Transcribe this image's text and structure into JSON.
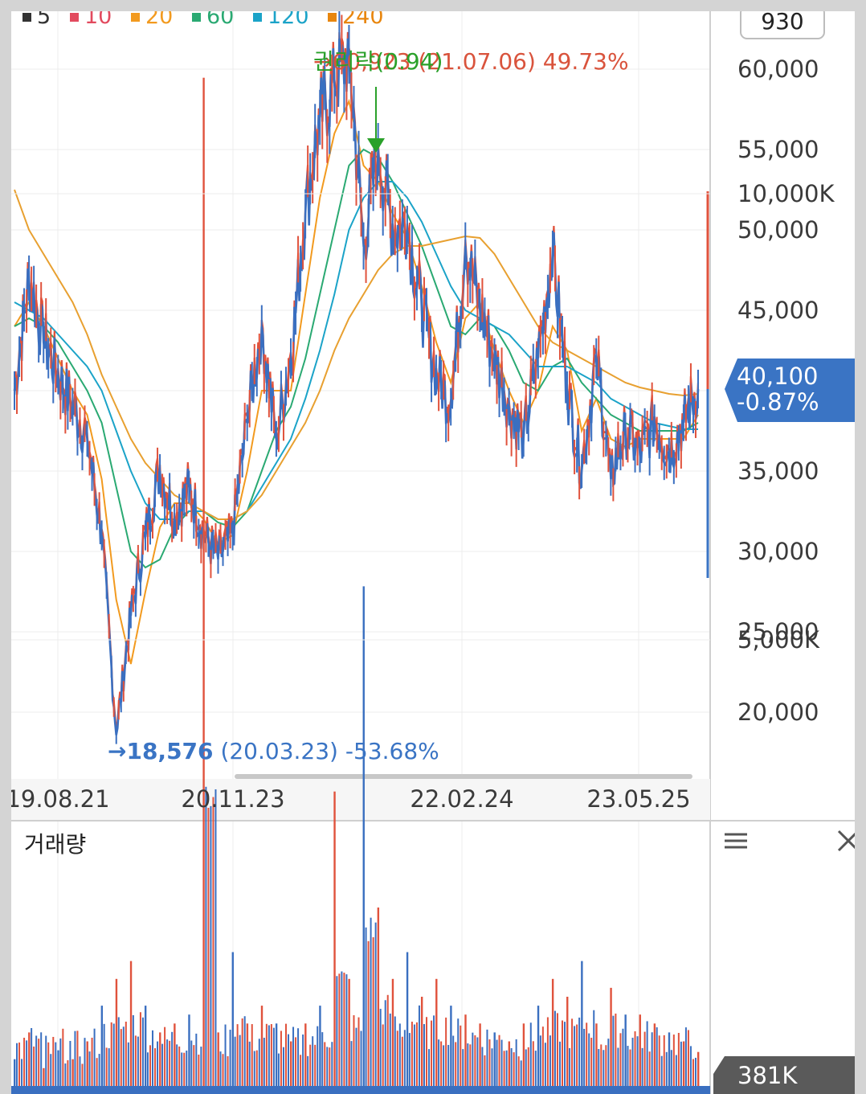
{
  "legend": [
    {
      "label": "5",
      "color": "#333333"
    },
    {
      "label": "10",
      "color": "#e24a5e"
    },
    {
      "label": "20",
      "color": "#f29a1f"
    },
    {
      "label": "60",
      "color": "#2aa972"
    },
    {
      "label": "120",
      "color": "#1ba3c8"
    },
    {
      "label": "240",
      "color": "#e8860e"
    }
  ],
  "top_box": "930",
  "current_price": {
    "value": "40,100",
    "change": "-0.87%",
    "color": "#3a74c4"
  },
  "high_annotation": {
    "value": "→60,923",
    "date": "(21.07.06)",
    "pct": "49.73%"
  },
  "low_annotation": {
    "arrow": "→",
    "value": "18,576",
    "date": "(20.03.23)",
    "pct": "-53.68%"
  },
  "event_marker": {
    "label": "권리락(0.94)"
  },
  "volume_panel": {
    "title": "거래량",
    "current": "381K",
    "menu_icon": "menu-icon",
    "close_icon": "close-icon"
  },
  "chart_data": [
    {
      "type": "candlestick-line",
      "title": "",
      "x_tick_labels": [
        "19.08.21",
        "20.11.23",
        "22.02.24",
        "23.05.25"
      ],
      "ylim": [
        15000,
        63000
      ],
      "y_ticks": [
        20000,
        25000,
        30000,
        35000,
        40000,
        45000,
        50000,
        55000,
        60000
      ],
      "y_tick_labels": [
        "20,000",
        "25,000",
        "30,000",
        "35,000",
        "40,000",
        "45,000",
        "50,000",
        "55,000",
        "60,000"
      ],
      "grid": true,
      "legend_placement": "top-left",
      "price_series": {
        "name": "price",
        "points": [
          [
            "19.08",
            40000
          ],
          [
            "19.09",
            47000
          ],
          [
            "19.10",
            43000
          ],
          [
            "19.11",
            41000
          ],
          [
            "19.12",
            39000
          ],
          [
            "20.01",
            37000
          ],
          [
            "20.02",
            31000
          ],
          [
            "20.03",
            18576
          ],
          [
            "20.04",
            26000
          ],
          [
            "20.05",
            31000
          ],
          [
            "20.06",
            35000
          ],
          [
            "20.07",
            32000
          ],
          [
            "20.08",
            34000
          ],
          [
            "20.09",
            31000
          ],
          [
            "20.10",
            29500
          ],
          [
            "20.11",
            31000
          ],
          [
            "20.12",
            38000
          ],
          [
            "21.01",
            44000
          ],
          [
            "21.02",
            37000
          ],
          [
            "21.03",
            42000
          ],
          [
            "21.04",
            51000
          ],
          [
            "21.05",
            57000
          ],
          [
            "21.06",
            59000
          ],
          [
            "21.07",
            60923
          ],
          [
            "21.08",
            49000
          ],
          [
            "21.09",
            55000
          ],
          [
            "21.10",
            50000
          ],
          [
            "21.11",
            50000
          ],
          [
            "21.12",
            45000
          ],
          [
            "22.01",
            41000
          ],
          [
            "22.02",
            39000
          ],
          [
            "22.03",
            49000
          ],
          [
            "22.04",
            45000
          ],
          [
            "22.05",
            42000
          ],
          [
            "22.06",
            39000
          ],
          [
            "22.07",
            37000
          ],
          [
            "22.08",
            42000
          ],
          [
            "22.09",
            48500
          ],
          [
            "22.10",
            40000
          ],
          [
            "22.11",
            35000
          ],
          [
            "22.12",
            42000
          ],
          [
            "23.01",
            34500
          ],
          [
            "23.02",
            37500
          ],
          [
            "23.03",
            36000
          ],
          [
            "23.04",
            38000
          ],
          [
            "23.05",
            36000
          ],
          [
            "23.06",
            38000
          ],
          [
            "23.07",
            40100
          ]
        ]
      },
      "ma_series": [
        {
          "name": "20",
          "values": [
            44000,
            45500,
            44000,
            42000,
            40000,
            38500,
            34500,
            27000,
            23000,
            27500,
            31500,
            33000,
            33000,
            32000,
            30500,
            31000,
            35000,
            40000,
            40000,
            40000,
            46000,
            52000,
            56000,
            58000,
            54000,
            53000,
            51000,
            49500,
            46500,
            43000,
            40500,
            44500,
            45500,
            42500,
            40000,
            38000,
            40000,
            44000,
            42500,
            37500,
            39500,
            37000,
            36500,
            37000,
            37000,
            37000,
            37000,
            38500
          ]
        },
        {
          "name": "60",
          "values": [
            44000,
            44500,
            44000,
            43000,
            41500,
            40000,
            38000,
            34000,
            30000,
            29000,
            29500,
            31500,
            32500,
            32500,
            31800,
            31500,
            32500,
            35000,
            37500,
            39000,
            42000,
            46000,
            50000,
            54000,
            55000,
            54500,
            53000,
            51000,
            49000,
            46500,
            44000,
            43500,
            44500,
            44000,
            42500,
            40500,
            40000,
            41500,
            42000,
            40500,
            39500,
            38500,
            38000,
            37500,
            37500,
            37500,
            37500,
            38000
          ]
        },
        {
          "name": "120",
          "values": [
            45500,
            45000,
            44500,
            43500,
            42500,
            41500,
            40000,
            37500,
            35000,
            33000,
            32000,
            32000,
            32500,
            32500,
            32000,
            32000,
            32500,
            34000,
            35500,
            37000,
            39500,
            42500,
            46000,
            50000,
            52000,
            53000,
            53000,
            52000,
            50500,
            48500,
            46500,
            45000,
            44500,
            44000,
            43500,
            42500,
            41500,
            41500,
            41500,
            41000,
            40500,
            39500,
            39000,
            38500,
            38000,
            37800,
            37600,
            37600
          ]
        },
        {
          "name": "240",
          "values": [
            52500,
            50000,
            48500,
            47000,
            45500,
            43500,
            41000,
            39000,
            37000,
            35500,
            34500,
            33500,
            33000,
            32500,
            32000,
            32000,
            32500,
            33500,
            35000,
            36500,
            38000,
            40000,
            42500,
            44500,
            46000,
            47500,
            48500,
            49000,
            49000,
            49200,
            49400,
            49600,
            49500,
            48500,
            47000,
            45500,
            44000,
            43000,
            42500,
            42000,
            41500,
            41000,
            40500,
            40200,
            40000,
            39800,
            39700,
            39800
          ]
        }
      ]
    },
    {
      "type": "bar",
      "title": "거래량",
      "ylim": [
        0,
        11000
      ],
      "y_ticks": [
        5000,
        10000
      ],
      "y_tick_labels": [
        "5,000K",
        "10,000K"
      ],
      "unit": "K",
      "values": [
        300,
        600,
        200,
        400,
        300,
        500,
        900,
        1200,
        1400,
        900,
        600,
        700,
        800,
        11300,
        600,
        1500,
        700,
        900,
        700,
        500,
        700,
        900,
        3300,
        1200,
        5600,
        2000,
        1200,
        1500,
        1000,
        1200,
        900,
        800,
        700,
        600,
        500,
        700,
        900,
        1200,
        1000,
        1400,
        700,
        1100,
        800,
        800,
        700,
        600,
        500,
        381
      ]
    }
  ]
}
